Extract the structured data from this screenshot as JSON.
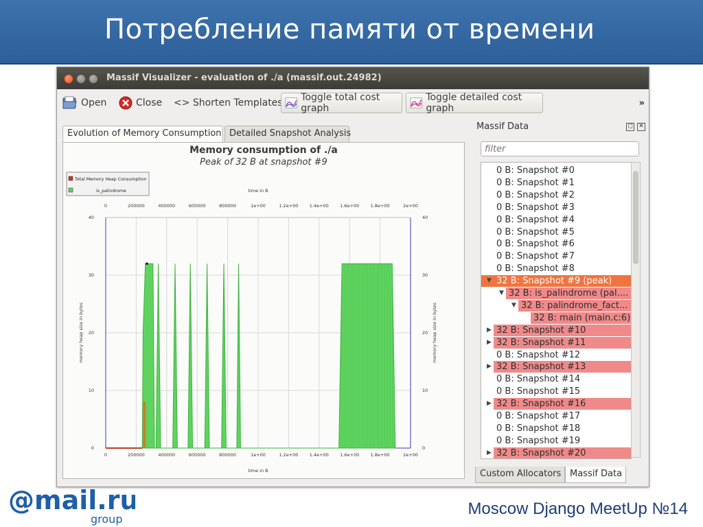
{
  "slide": {
    "title": "Потребление памяти от времени",
    "footer": "Moscow Django MeetUp №14",
    "logo_main": "@mail.ru",
    "logo_sub": "group"
  },
  "window": {
    "title": "Massif Visualizer - evaluation of ./a (massif.out.24982)"
  },
  "toolbar": {
    "open": "Open",
    "close": "Close",
    "shorten": "<> Shorten Templates",
    "toggle_total": "Toggle total cost graph",
    "toggle_detailed": "Toggle detailed cost graph",
    "overflow": "»"
  },
  "tabs": [
    "Evolution of Memory Consumption",
    "Detailed Snapshot Analysis"
  ],
  "chart": {
    "title": "Memory consumption of ./a",
    "subtitle": "Peak of 32 B at snapshot #9",
    "legend": [
      "Total Memory Heap Consumption",
      "is_palindrome"
    ],
    "xlabel": "time in B",
    "ylabel": "memory heap size in bytes",
    "xticks": [
      "0",
      "200000",
      "400000",
      "600000",
      "800000",
      "1e+00",
      "1.2e+00",
      "1.4e+00",
      "1.6e+00",
      "1.8e+00",
      "2e+00"
    ],
    "yticks": [
      "0",
      "10",
      "20",
      "30",
      "40"
    ]
  },
  "chart_data": {
    "type": "area",
    "title": "Memory consumption of ./a",
    "subtitle": "Peak of 32 B at snapshot #9",
    "xlabel": "time in B",
    "ylabel": "memory heap size in bytes",
    "xlim": [
      0,
      2000000
    ],
    "ylim": [
      0,
      40
    ],
    "grid": true,
    "legend_position": "top-left",
    "colors": {
      "total": "#c0392b",
      "is_palindrome": "#5fd35f",
      "is_palindrome_stroke": "#3fb13f"
    },
    "series": [
      {
        "name": "Total Memory Heap Consumption",
        "points": [
          [
            0,
            0
          ],
          [
            240000,
            0
          ]
        ]
      },
      {
        "name": "is_palindrome",
        "points": [
          [
            240000,
            0
          ],
          [
            245000,
            20
          ],
          [
            260000,
            32
          ],
          [
            310000,
            32
          ],
          [
            320000,
            0
          ],
          [
            330000,
            0
          ],
          [
            345000,
            32
          ],
          [
            360000,
            0
          ],
          [
            440000,
            0
          ],
          [
            455000,
            32
          ],
          [
            470000,
            0
          ],
          [
            540000,
            0
          ],
          [
            555000,
            32
          ],
          [
            570000,
            0
          ],
          [
            650000,
            0
          ],
          [
            665000,
            32
          ],
          [
            680000,
            0
          ],
          [
            760000,
            0
          ],
          [
            775000,
            32
          ],
          [
            790000,
            0
          ],
          [
            860000,
            0
          ],
          [
            872000,
            32
          ],
          [
            885000,
            0
          ],
          [
            1530000,
            0
          ],
          [
            1550000,
            32
          ],
          [
            1880000,
            32
          ],
          [
            1900000,
            0
          ]
        ]
      }
    ],
    "peak_marker": {
      "x": 270000,
      "y": 32
    }
  },
  "dock": {
    "title": "Massif Data",
    "filter_placeholder": "filter",
    "rows": [
      {
        "text": "0 B: Snapshot #0",
        "level": 0,
        "arrow": "",
        "hl": "none"
      },
      {
        "text": "0 B: Snapshot #1",
        "level": 0,
        "arrow": "",
        "hl": "none"
      },
      {
        "text": "0 B: Snapshot #2",
        "level": 0,
        "arrow": "",
        "hl": "none"
      },
      {
        "text": "0 B: Snapshot #3",
        "level": 0,
        "arrow": "",
        "hl": "none"
      },
      {
        "text": "0 B: Snapshot #4",
        "level": 0,
        "arrow": "",
        "hl": "none"
      },
      {
        "text": "0 B: Snapshot #5",
        "level": 0,
        "arrow": "",
        "hl": "none"
      },
      {
        "text": "0 B: Snapshot #6",
        "level": 0,
        "arrow": "",
        "hl": "none"
      },
      {
        "text": "0 B: Snapshot #7",
        "level": 0,
        "arrow": "",
        "hl": "none"
      },
      {
        "text": "0 B: Snapshot #8",
        "level": 0,
        "arrow": "",
        "hl": "none"
      },
      {
        "text": "32 B: Snapshot #9 (peak)",
        "level": 0,
        "arrow": "▼",
        "hl": "selected"
      },
      {
        "text": "32 B: is_palindrome (pal....",
        "level": 1,
        "arrow": "▼",
        "hl": "red"
      },
      {
        "text": "32 B: palindrome_fact...",
        "level": 2,
        "arrow": "▼",
        "hl": "red"
      },
      {
        "text": "32 B: main (main.c:6)",
        "level": 3,
        "arrow": "",
        "hl": "red"
      },
      {
        "text": "32 B: Snapshot #10",
        "level": 0,
        "arrow": "▶",
        "hl": "red"
      },
      {
        "text": "32 B: Snapshot #11",
        "level": 0,
        "arrow": "▶",
        "hl": "red"
      },
      {
        "text": "0 B: Snapshot #12",
        "level": 0,
        "arrow": "",
        "hl": "none"
      },
      {
        "text": "32 B: Snapshot #13",
        "level": 0,
        "arrow": "▶",
        "hl": "red"
      },
      {
        "text": "0 B: Snapshot #14",
        "level": 0,
        "arrow": "",
        "hl": "none"
      },
      {
        "text": "0 B: Snapshot #15",
        "level": 0,
        "arrow": "",
        "hl": "none"
      },
      {
        "text": "32 B: Snapshot #16",
        "level": 0,
        "arrow": "▶",
        "hl": "red"
      },
      {
        "text": "0 B: Snapshot #17",
        "level": 0,
        "arrow": "",
        "hl": "none"
      },
      {
        "text": "0 B: Snapshot #18",
        "level": 0,
        "arrow": "",
        "hl": "none"
      },
      {
        "text": "0 B: Snapshot #19",
        "level": 0,
        "arrow": "",
        "hl": "none"
      },
      {
        "text": "32 B: Snapshot #20",
        "level": 0,
        "arrow": "▶",
        "hl": "red"
      }
    ],
    "bottom_tabs": [
      "Custom Allocators",
      "Massif Data"
    ]
  },
  "icons": [
    "open-folder-icon",
    "close-icon",
    "total-graph-icon",
    "detailed-graph-icon",
    "dock-float-icon",
    "dock-close-icon"
  ]
}
